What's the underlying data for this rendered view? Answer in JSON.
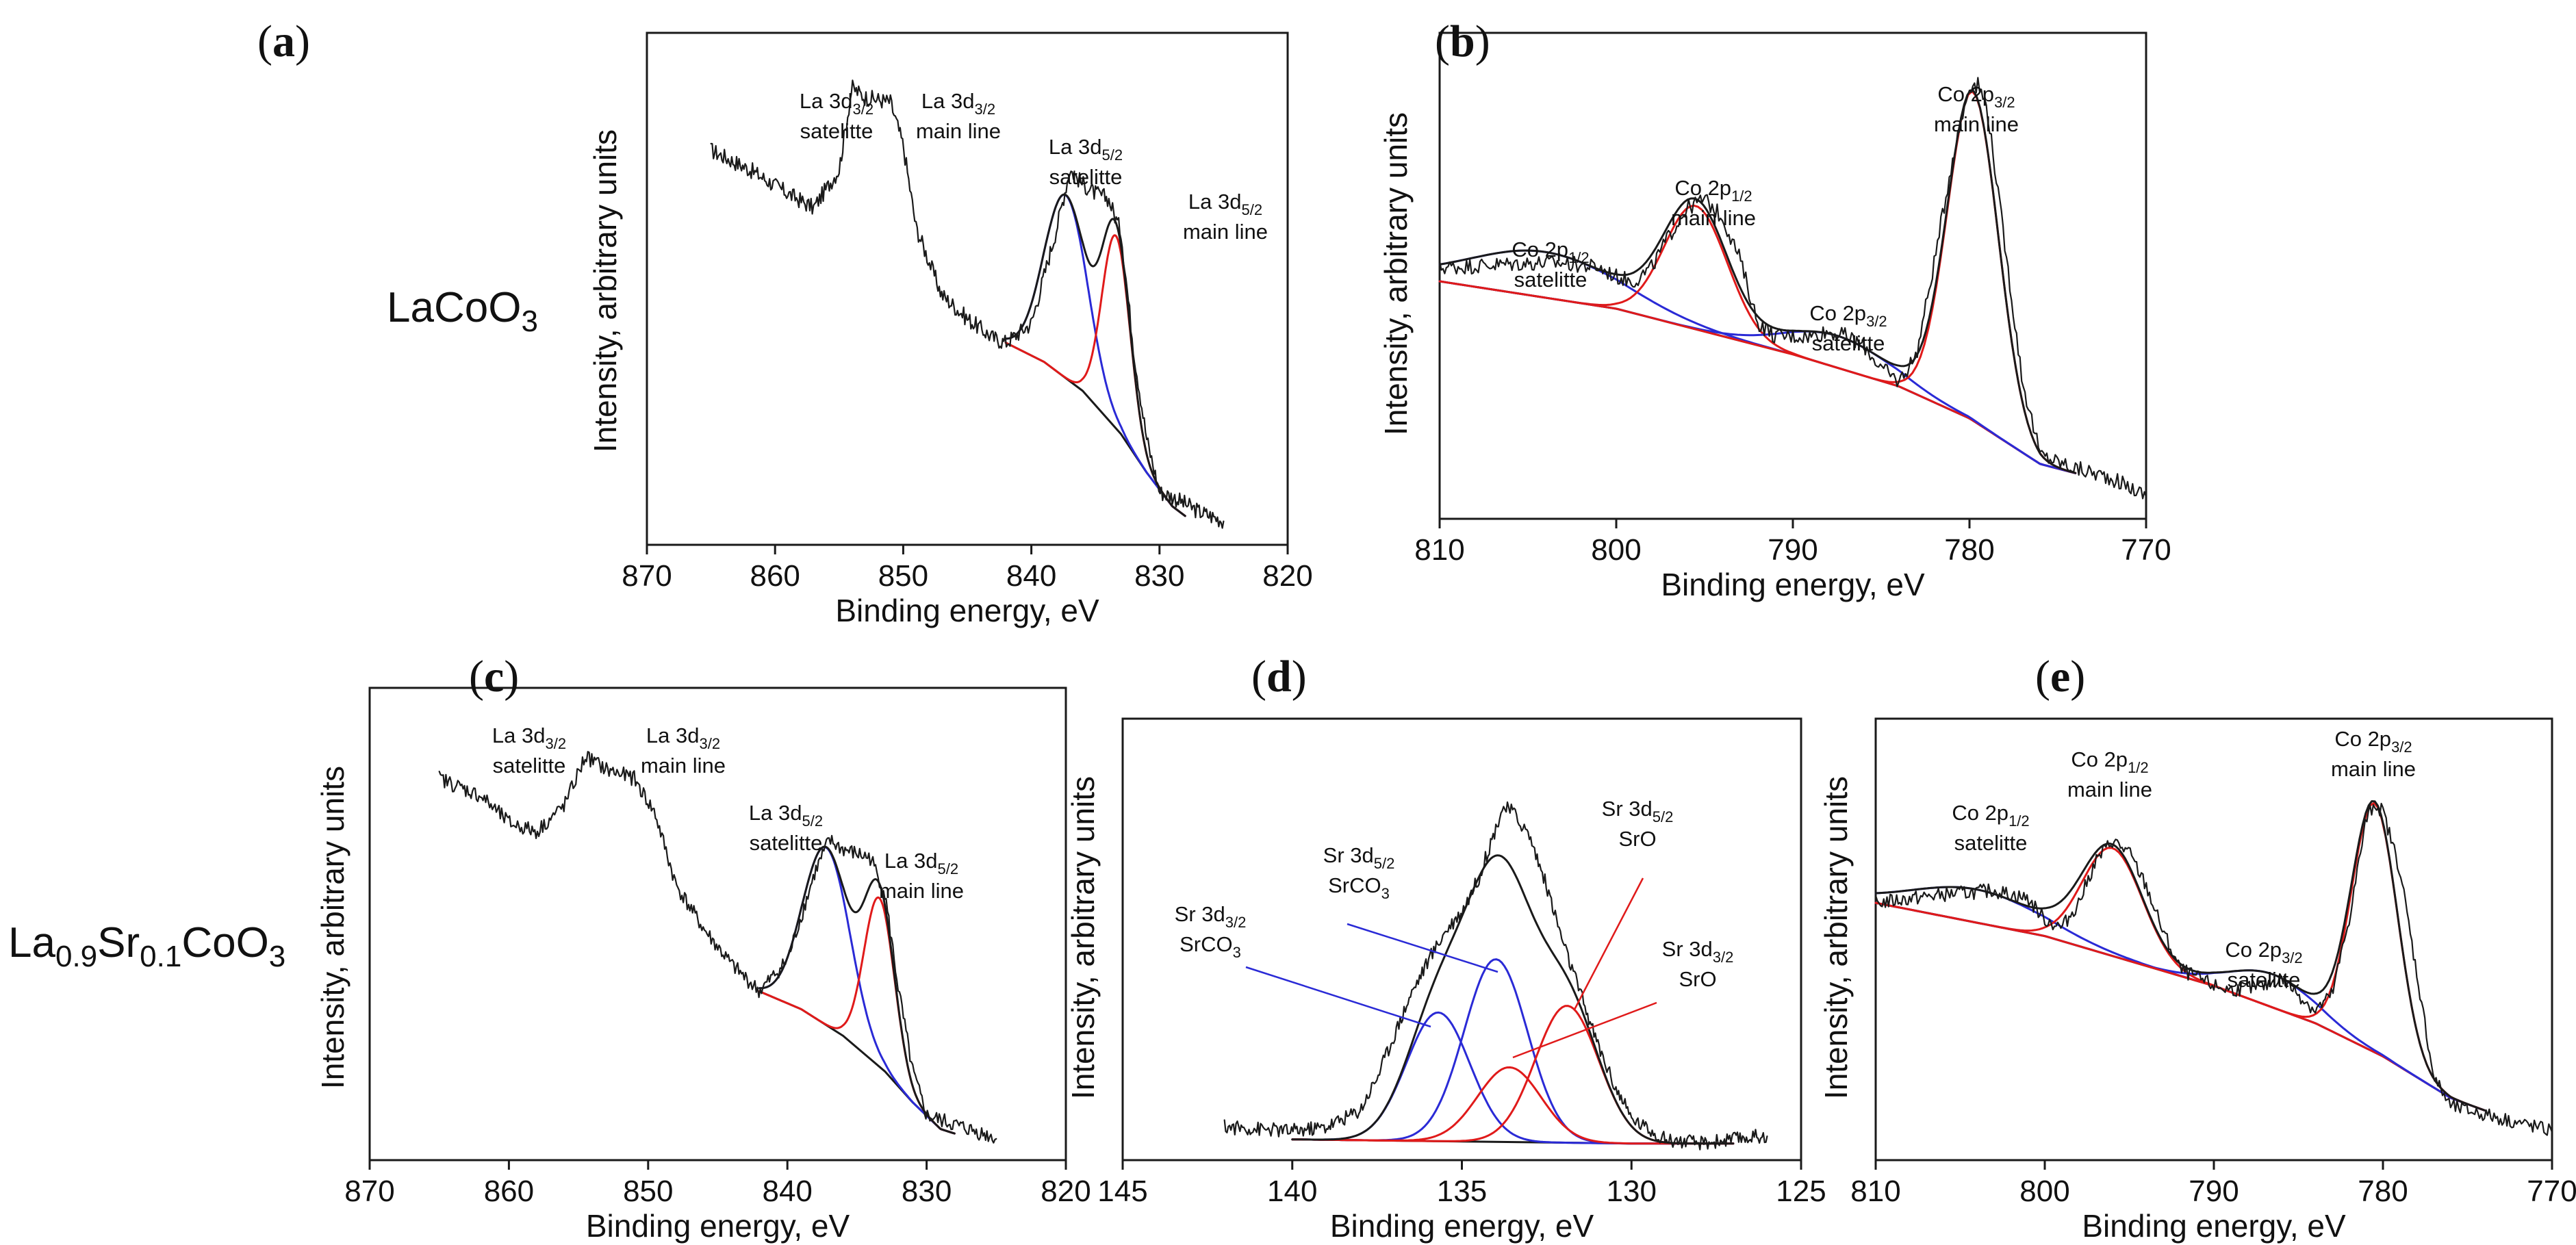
{
  "row_labels": {
    "row1": {
      "base": "LaCoO",
      "sub": "3"
    },
    "row2": {
      "p1": "La",
      "s1": "0.9",
      "p2": "Sr",
      "s2": "0.1",
      "p3": "CoO",
      "s3": "3"
    }
  },
  "colors": {
    "raw": "#1a1a1a",
    "background": "#1a1a1a",
    "satellite": "#2a2ad6",
    "main": "#e01a1a"
  },
  "chart_data": [
    {
      "panel": "(a)",
      "type": "line",
      "xlim": [
        870,
        820
      ],
      "xticks": [
        870,
        860,
        850,
        840,
        830,
        820
      ],
      "xlabel": "Binding energy, eV",
      "ylabel": "Intensity, arbitrary units",
      "raw_points": [
        [
          865,
          0.82
        ],
        [
          862,
          0.78
        ],
        [
          859,
          0.73
        ],
        [
          857,
          0.7
        ],
        [
          855,
          0.78
        ],
        [
          854,
          0.95
        ],
        [
          853,
          0.93
        ],
        [
          851,
          0.92
        ],
        [
          850,
          0.83
        ],
        [
          849,
          0.66
        ],
        [
          847,
          0.52
        ],
        [
          845,
          0.47
        ],
        [
          843,
          0.43
        ],
        [
          842,
          0.42
        ],
        [
          840,
          0.46
        ],
        [
          838,
          0.66
        ],
        [
          837,
          0.78
        ],
        [
          836,
          0.75
        ],
        [
          835,
          0.73
        ],
        [
          834,
          0.72
        ],
        [
          833,
          0.65
        ],
        [
          832,
          0.4
        ],
        [
          831,
          0.22
        ],
        [
          830,
          0.11
        ],
        [
          829,
          0.1
        ],
        [
          827,
          0.07
        ],
        [
          825,
          0.05
        ]
      ],
      "background_points": [
        [
          842,
          0.42
        ],
        [
          839,
          0.38
        ],
        [
          836,
          0.32
        ],
        [
          833,
          0.23
        ],
        [
          831,
          0.15
        ],
        [
          829,
          0.08
        ],
        [
          828,
          0.06
        ]
      ],
      "components": [
        {
          "color": "satellite",
          "center": 837.3,
          "fwhm": 4.0,
          "height": 0.38
        },
        {
          "color": "main",
          "center": 833.4,
          "fwhm": 2.6,
          "height": 0.4
        }
      ],
      "annotations": [
        {
          "pre": "La 3d",
          "sub": "3/2",
          "line2": "satelitte"
        },
        {
          "pre": "La 3d",
          "sub": "3/2",
          "line2": "main line"
        },
        {
          "pre": "La 3d",
          "sub": "5/2",
          "line2": "satelitte"
        },
        {
          "pre": "La 3d",
          "sub": "5/2",
          "line2": "main line"
        }
      ]
    },
    {
      "panel": "(b)",
      "type": "line",
      "xlim": [
        810,
        770
      ],
      "xticks": [
        810,
        800,
        790,
        780,
        770
      ],
      "xlabel": "Binding energy, eV",
      "ylabel": "Intensity, arbitrary units",
      "raw_points": [
        [
          810,
          0.55
        ],
        [
          805,
          0.56
        ],
        [
          803,
          0.56
        ],
        [
          801,
          0.55
        ],
        [
          800,
          0.53
        ],
        [
          799,
          0.52
        ],
        [
          798,
          0.55
        ],
        [
          797,
          0.62
        ],
        [
          796,
          0.68
        ],
        [
          795,
          0.7
        ],
        [
          794,
          0.66
        ],
        [
          793,
          0.57
        ],
        [
          792,
          0.43
        ],
        [
          791,
          0.4
        ],
        [
          789,
          0.4
        ],
        [
          788,
          0.41
        ],
        [
          787,
          0.4
        ],
        [
          786,
          0.38
        ],
        [
          785,
          0.33
        ],
        [
          784,
          0.3
        ],
        [
          783,
          0.36
        ],
        [
          782,
          0.56
        ],
        [
          781,
          0.78
        ],
        [
          780,
          0.95
        ],
        [
          779.5,
          0.95
        ],
        [
          779,
          0.9
        ],
        [
          778,
          0.6
        ],
        [
          777,
          0.3
        ],
        [
          776,
          0.14
        ],
        [
          774,
          0.11
        ],
        [
          772,
          0.09
        ],
        [
          770,
          0.05
        ]
      ],
      "background_points": [
        [
          810,
          0.52
        ],
        [
          800,
          0.46
        ],
        [
          790,
          0.36
        ],
        [
          784,
          0.29
        ],
        [
          780,
          0.22
        ],
        [
          776,
          0.12
        ],
        [
          774,
          0.1
        ]
      ],
      "components": [
        {
          "color": "satellite",
          "center": 804,
          "fwhm": 10.0,
          "height": 0.1
        },
        {
          "color": "main",
          "center": 795.5,
          "fwhm": 4.2,
          "height": 0.27
        },
        {
          "color": "satellite",
          "center": 787.5,
          "fwhm": 7.0,
          "height": 0.07
        },
        {
          "color": "main",
          "center": 779.8,
          "fwhm": 3.4,
          "height": 0.72
        }
      ],
      "annotations": [
        {
          "pre": "Co 2p",
          "sub": "1/2",
          "line2": "satelitte"
        },
        {
          "pre": "Co 2p",
          "sub": "1/2",
          "line2": "main line"
        },
        {
          "pre": "Co 2p",
          "sub": "3/2",
          "line2": "satelitte"
        },
        {
          "pre": "Co 2p",
          "sub": "3/2",
          "line2": "main line"
        }
      ]
    },
    {
      "panel": "(c)",
      "type": "line",
      "xlim": [
        870,
        820
      ],
      "xticks": [
        870,
        860,
        850,
        840,
        830,
        820
      ],
      "xlabel": "Binding energy, eV",
      "ylabel": "Intensity, arbitrary units",
      "raw_points": [
        [
          865,
          0.86
        ],
        [
          862,
          0.82
        ],
        [
          860,
          0.76
        ],
        [
          858,
          0.74
        ],
        [
          856,
          0.8
        ],
        [
          854.5,
          0.91
        ],
        [
          853,
          0.88
        ],
        [
          851,
          0.86
        ],
        [
          849.5,
          0.78
        ],
        [
          848,
          0.62
        ],
        [
          846,
          0.52
        ],
        [
          844,
          0.44
        ],
        [
          842,
          0.38
        ],
        [
          840,
          0.45
        ],
        [
          838,
          0.65
        ],
        [
          837,
          0.72
        ],
        [
          836,
          0.7
        ],
        [
          834,
          0.68
        ],
        [
          833,
          0.6
        ],
        [
          832,
          0.38
        ],
        [
          831,
          0.2
        ],
        [
          830,
          0.1
        ],
        [
          828,
          0.08
        ],
        [
          825,
          0.05
        ]
      ],
      "background_points": [
        [
          842,
          0.38
        ],
        [
          839,
          0.34
        ],
        [
          836,
          0.28
        ],
        [
          833,
          0.2
        ],
        [
          831,
          0.13
        ],
        [
          829,
          0.07
        ],
        [
          828,
          0.06
        ]
      ],
      "components": [
        {
          "color": "satellite",
          "center": 837.2,
          "fwhm": 4.0,
          "height": 0.4
        },
        {
          "color": "main",
          "center": 833.4,
          "fwhm": 2.6,
          "height": 0.38
        }
      ],
      "annotations": [
        {
          "pre": "La 3d",
          "sub": "3/2",
          "line2": "satelitte"
        },
        {
          "pre": "La 3d",
          "sub": "3/2",
          "line2": "main line"
        },
        {
          "pre": "La 3d",
          "sub": "5/2",
          "line2": "satelitte"
        },
        {
          "pre": "La 3d",
          "sub": "5/2",
          "line2": "main line"
        }
      ]
    },
    {
      "panel": "(d)",
      "type": "line",
      "xlim": [
        145,
        125
      ],
      "xticks": [
        145,
        140,
        135,
        130,
        125
      ],
      "xlabel": "Binding energy, eV",
      "ylabel": "Intensity, arbitrary units",
      "raw_points": [
        [
          142,
          0.08
        ],
        [
          140,
          0.07
        ],
        [
          139,
          0.08
        ],
        [
          138,
          0.12
        ],
        [
          137.5,
          0.2
        ],
        [
          137,
          0.3
        ],
        [
          136.5,
          0.4
        ],
        [
          136,
          0.48
        ],
        [
          135.5,
          0.55
        ],
        [
          135,
          0.6
        ],
        [
          134.5,
          0.68
        ],
        [
          134,
          0.8
        ],
        [
          133.8,
          0.85
        ],
        [
          133.5,
          0.84
        ],
        [
          133,
          0.78
        ],
        [
          132.5,
          0.66
        ],
        [
          132,
          0.52
        ],
        [
          131.5,
          0.4
        ],
        [
          131,
          0.28
        ],
        [
          130.5,
          0.18
        ],
        [
          130,
          0.1
        ],
        [
          129,
          0.05
        ],
        [
          128,
          0.04
        ],
        [
          126,
          0.06
        ]
      ],
      "background_points": [
        [
          140,
          0.05
        ],
        [
          135,
          0.045
        ],
        [
          130,
          0.04
        ],
        [
          127,
          0.04
        ]
      ],
      "components": [
        {
          "color": "satellite",
          "center": 135.7,
          "fwhm": 2.2,
          "height": 0.31
        },
        {
          "color": "satellite",
          "center": 134.0,
          "fwhm": 2.2,
          "height": 0.44
        },
        {
          "color": "main",
          "center": 133.6,
          "fwhm": 2.2,
          "height": 0.18
        },
        {
          "color": "main",
          "center": 131.9,
          "fwhm": 2.2,
          "height": 0.33
        }
      ],
      "annotations": [
        {
          "pre": "Sr 3d",
          "sub": "3/2",
          "line2": "SrCO",
          "line2sub": "3"
        },
        {
          "pre": "Sr 3d",
          "sub": "5/2",
          "line2": "SrCO",
          "line2sub": "3"
        },
        {
          "pre": "Sr 3d",
          "sub": "5/2",
          "line2": "SrO"
        },
        {
          "pre": "Sr 3d",
          "sub": "3/2",
          "line2": "SrO"
        }
      ]
    },
    {
      "panel": "(e)",
      "type": "line",
      "xlim": [
        810,
        770
      ],
      "xticks": [
        810,
        800,
        790,
        780,
        770
      ],
      "xlabel": "Binding energy, eV",
      "ylabel": "Intensity, arbitrary units",
      "raw_points": [
        [
          810,
          0.62
        ],
        [
          806,
          0.64
        ],
        [
          803,
          0.65
        ],
        [
          801,
          0.63
        ],
        [
          800,
          0.58
        ],
        [
          799,
          0.56
        ],
        [
          798,
          0.62
        ],
        [
          797,
          0.72
        ],
        [
          796,
          0.77
        ],
        [
          795,
          0.74
        ],
        [
          794,
          0.66
        ],
        [
          793,
          0.55
        ],
        [
          792,
          0.46
        ],
        [
          790,
          0.42
        ],
        [
          789,
          0.41
        ],
        [
          787,
          0.42
        ],
        [
          786,
          0.44
        ],
        [
          785,
          0.4
        ],
        [
          784,
          0.36
        ],
        [
          783,
          0.4
        ],
        [
          782,
          0.58
        ],
        [
          781,
          0.82
        ],
        [
          780.5,
          0.86
        ],
        [
          780,
          0.84
        ],
        [
          779,
          0.7
        ],
        [
          778,
          0.45
        ],
        [
          777,
          0.2
        ],
        [
          776,
          0.13
        ],
        [
          774,
          0.11
        ],
        [
          772,
          0.09
        ],
        [
          770,
          0.07
        ]
      ],
      "background_points": [
        [
          810,
          0.62
        ],
        [
          800,
          0.54
        ],
        [
          790,
          0.42
        ],
        [
          784,
          0.33
        ],
        [
          780,
          0.25
        ],
        [
          776,
          0.15
        ],
        [
          774,
          0.12
        ]
      ],
      "components": [
        {
          "color": "satellite",
          "center": 804,
          "fwhm": 9.0,
          "height": 0.08
        },
        {
          "color": "main",
          "center": 796,
          "fwhm": 4.2,
          "height": 0.26
        },
        {
          "color": "satellite",
          "center": 786.5,
          "fwhm": 6.0,
          "height": 0.08
        },
        {
          "color": "main",
          "center": 780.5,
          "fwhm": 3.2,
          "height": 0.6
        }
      ],
      "annotations": [
        {
          "pre": "Co 2p",
          "sub": "1/2",
          "line2": "satelitte"
        },
        {
          "pre": "Co 2p",
          "sub": "1/2",
          "line2": "main line"
        },
        {
          "pre": "Co 2p",
          "sub": "3/2",
          "line2": "satelitte"
        },
        {
          "pre": "Co 2p",
          "sub": "3/2",
          "line2": "main line"
        }
      ]
    }
  ]
}
